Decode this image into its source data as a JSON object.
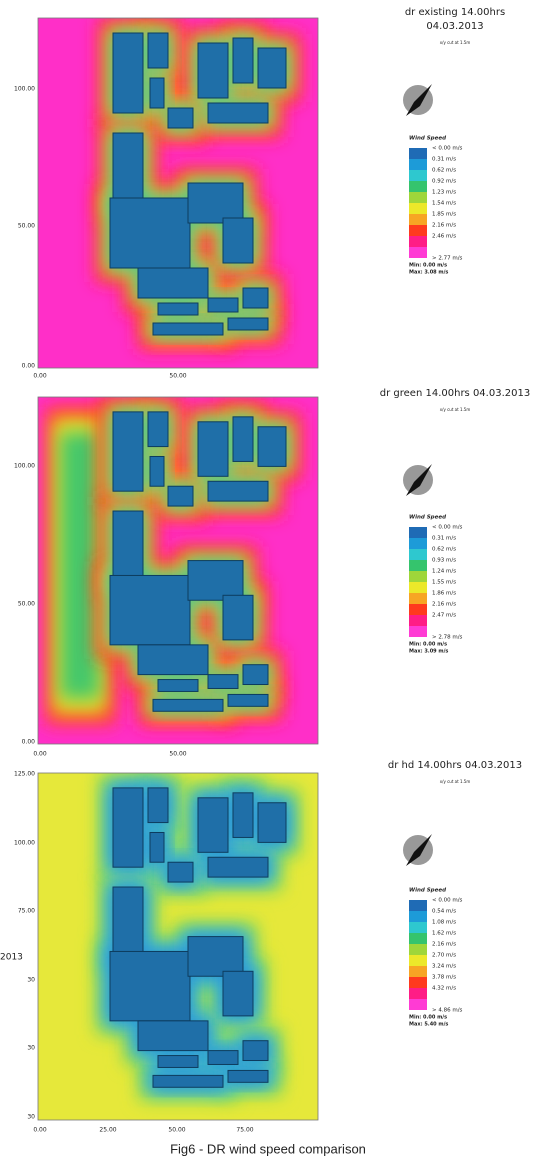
{
  "panels": [
    {
      "title_lines": [
        "dr existing 14.00hrs",
        "04.03.2013"
      ],
      "subtitle": "x/y cut at 1.5m",
      "legend_title": "Wind Speed",
      "legend_labels": [
        "< 0.00 m/s",
        "0.31  m/s",
        "0.62  m/s",
        "0.92  m/s",
        "1.23  m/s",
        "1.54  m/s",
        "1.85  m/s",
        "2.16  m/s",
        "2.46  m/s",
        "> 2.77 m/s"
      ],
      "min_label": "Min: 0.00 m/s",
      "max_label": "Max: 3.08 m/s",
      "y_ticks": [
        "100.00",
        "50.00",
        "0.00"
      ],
      "x_ticks": [
        "0.00",
        "50.00"
      ]
    },
    {
      "title_lines": [
        "dr green 14.00hrs 04.03.2013"
      ],
      "subtitle": "x/y cut at 1.5m",
      "legend_title": "Wind Speed",
      "legend_labels": [
        "< 0.00 m/s",
        "0.31  m/s",
        "0.62  m/s",
        "0.93  m/s",
        "1.24  m/s",
        "1.55  m/s",
        "1.86  m/s",
        "2.16  m/s",
        "2.47  m/s",
        "> 2.78 m/s"
      ],
      "min_label": "Min: 0.00 m/s",
      "max_label": "Max: 3.09 m/s",
      "y_ticks": [
        "100.00",
        "50.00",
        "0.00"
      ],
      "x_ticks": [
        "0.00",
        "50.00"
      ]
    },
    {
      "title_lines": [
        "dr hd 14.00hrs 04.03.2013"
      ],
      "subtitle": "x/y cut at 1.5m",
      "legend_title": "Wind Speed",
      "legend_labels": [
        "< 0.00 m/s",
        "0.54  m/s",
        "1.08  m/s",
        "1.62  m/s",
        "2.16  m/s",
        "2.70  m/s",
        "3.24  m/s",
        "3.78  m/s",
        "4.32  m/s",
        "> 4.86 m/s"
      ],
      "min_label": "Min: 0.00 m/s",
      "max_label": "Max: 5.40 m/s",
      "y_ticks": [
        "125.00",
        "100.00",
        "75.00",
        "30",
        "30",
        "30"
      ],
      "x_ticks": [
        "0.00",
        "25.00",
        "50.00",
        "75.00"
      ]
    }
  ],
  "side_fragment": "2013",
  "caption": "Fig6 - DR wind speed comparison"
}
